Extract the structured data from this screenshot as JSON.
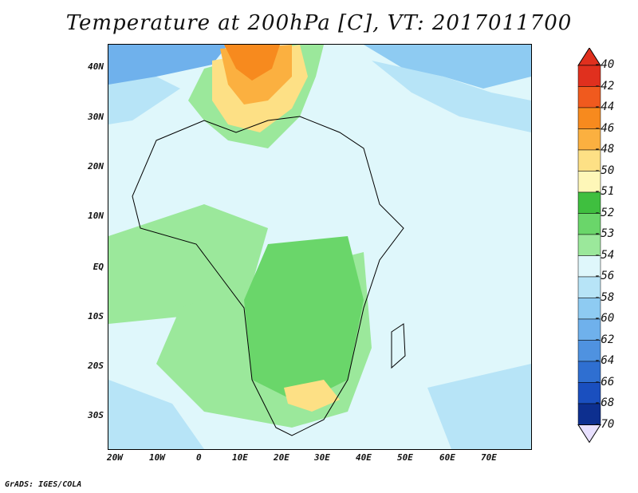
{
  "title": "Temperature at 200hPa [C], VT: 2017011700",
  "footer": "GrADS: IGES/COLA",
  "lat_labels": [
    "40N",
    "30N",
    "20N",
    "10N",
    "EQ",
    "10S",
    "20S",
    "30S"
  ],
  "lon_labels": [
    "20W",
    "10W",
    "0",
    "10E",
    "20E",
    "30E",
    "40E",
    "50E",
    "60E",
    "70E"
  ],
  "colorbar": {
    "labels": [
      "-40",
      "-42",
      "-44",
      "-46",
      "-48",
      "-50",
      "-51",
      "-52",
      "-53",
      "-54",
      "-56",
      "-58",
      "-60",
      "-62",
      "-64",
      "-66",
      "-68",
      "-70"
    ],
    "colors": [
      "#e0301e",
      "#f05a1e",
      "#f78a1e",
      "#fbb040",
      "#fde085",
      "#fef7b8",
      "#3fbf3f",
      "#6ad66a",
      "#9be89b",
      "#dff7fb",
      "#b7e4f7",
      "#8ecbf2",
      "#6fb1ec",
      "#4f92e0",
      "#2f6fd1",
      "#1a4fbf",
      "#0d2f8f",
      "#f0e6ff"
    ],
    "top_arrow_color": "#e0301e",
    "bottom_arrow_color": "#e8e0ff"
  }
}
